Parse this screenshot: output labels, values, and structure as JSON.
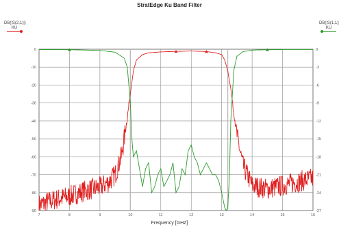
{
  "chart_data": {
    "type": "line",
    "title": "StratEdge Ku Band Filter",
    "xlabel": "Frequency [GHZ]",
    "x_ticks": [
      "7",
      "8",
      "9",
      "10",
      "11",
      "12",
      "13",
      "14",
      "15",
      "16"
    ],
    "xlim": [
      7,
      16
    ],
    "y_left": {
      "ticks": [
        "0",
        "-10",
        "-20",
        "-30",
        "-40",
        "-50",
        "-60",
        "-70",
        "-80",
        "-90"
      ],
      "lim": [
        -90,
        0
      ]
    },
    "y_right": {
      "ticks": [
        "0",
        "-3",
        "-6",
        "-9",
        "-12",
        "-15",
        "-18",
        "-21",
        "-24",
        "-27"
      ],
      "lim": [
        -27,
        0
      ]
    },
    "grid": true,
    "markers": [
      10,
      13.2
    ],
    "series": [
      {
        "name": "DB(|S(2,1)|)",
        "legend_lines": [
          "DB(|S(2,1)|)",
          "KU"
        ],
        "axis": "left",
        "color": "#e02020",
        "x": [
          7,
          7.5,
          8,
          8.5,
          9,
          9.3,
          9.5,
          9.7,
          9.8,
          9.9,
          10,
          10.1,
          10.2,
          10.4,
          10.6,
          11,
          11.5,
          12,
          12.5,
          12.8,
          13,
          13.1,
          13.2,
          13.3,
          13.4,
          13.5,
          13.7,
          14,
          14.5,
          15,
          15.5,
          16
        ],
        "y": [
          -87,
          -84,
          -82,
          -79,
          -77,
          -74,
          -70,
          -60,
          -50,
          -38,
          -25,
          -12,
          -6,
          -3,
          -2,
          -1.5,
          -1.2,
          -1,
          -1.3,
          -2,
          -3,
          -6,
          -12,
          -22,
          -35,
          -48,
          -65,
          -76,
          -78,
          -76,
          -74,
          -72
        ]
      },
      {
        "name": "DB(|S(1,1)|)",
        "legend_lines": [
          "DB(|S(1,1)|)",
          "KU"
        ],
        "axis": "right",
        "color": "#2a9a2a",
        "x": [
          7,
          8,
          9,
          9.5,
          9.8,
          9.9,
          10,
          10.05,
          10.1,
          10.2,
          10.3,
          10.4,
          10.5,
          10.6,
          10.7,
          10.8,
          10.9,
          11,
          11.1,
          11.2,
          11.3,
          11.4,
          11.5,
          11.6,
          11.7,
          11.8,
          11.9,
          12,
          12.1,
          12.2,
          12.3,
          12.4,
          12.5,
          12.6,
          12.7,
          12.8,
          12.9,
          13,
          13.1,
          13.15,
          13.2,
          13.25,
          13.3,
          13.4,
          13.5,
          13.7,
          14,
          14.5,
          15,
          16
        ],
        "y": [
          -0.05,
          -0.08,
          -0.2,
          -0.5,
          -1.5,
          -3,
          -9,
          -15,
          -18,
          -17,
          -20,
          -23,
          -20,
          -19,
          -24,
          -23,
          -21,
          -20,
          -23,
          -22,
          -21,
          -19,
          -24,
          -23,
          -20,
          -21,
          -17,
          -16,
          -18,
          -19,
          -21,
          -20,
          -19,
          -20,
          -21,
          -21,
          -22,
          -24,
          -26.5,
          -27,
          -26.5,
          -22,
          -12,
          -3.5,
          -1.2,
          -0.4,
          -0.15,
          -0.08,
          -0.05,
          -0.05
        ]
      }
    ]
  }
}
